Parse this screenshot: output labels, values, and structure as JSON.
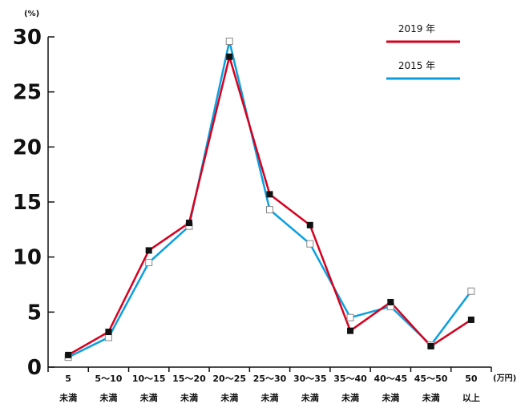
{
  "chart_data": {
    "type": "line",
    "ylabel": "(%)",
    "xunit": "(万円)",
    "ylim": [
      0,
      30
    ],
    "yticks": [
      0,
      5,
      10,
      15,
      20,
      25,
      30
    ],
    "categories": [
      [
        "5",
        "未満"
      ],
      [
        "5～10",
        "未満"
      ],
      [
        "10～15",
        "未満"
      ],
      [
        "15～20",
        "未満"
      ],
      [
        "20～25",
        "未満"
      ],
      [
        "25～30",
        "未満"
      ],
      [
        "30～35",
        "未満"
      ],
      [
        "35～40",
        "未満"
      ],
      [
        "40～45",
        "未満"
      ],
      [
        "45～50",
        "未満"
      ],
      [
        "50",
        "以上"
      ]
    ],
    "series": [
      {
        "name": "2019 年",
        "color": "#d7001e",
        "marker": "filled-square",
        "values": [
          1.1,
          3.2,
          10.6,
          13.1,
          28.2,
          15.7,
          12.9,
          3.3,
          5.9,
          1.9,
          4.3
        ]
      },
      {
        "name": "2015 年",
        "color": "#0aa0e0",
        "marker": "open-square",
        "values": [
          0.9,
          2.7,
          9.5,
          12.8,
          29.6,
          14.3,
          11.2,
          4.5,
          5.5,
          2.0,
          6.9
        ]
      }
    ],
    "legend_position": "top-right",
    "grid": false
  }
}
